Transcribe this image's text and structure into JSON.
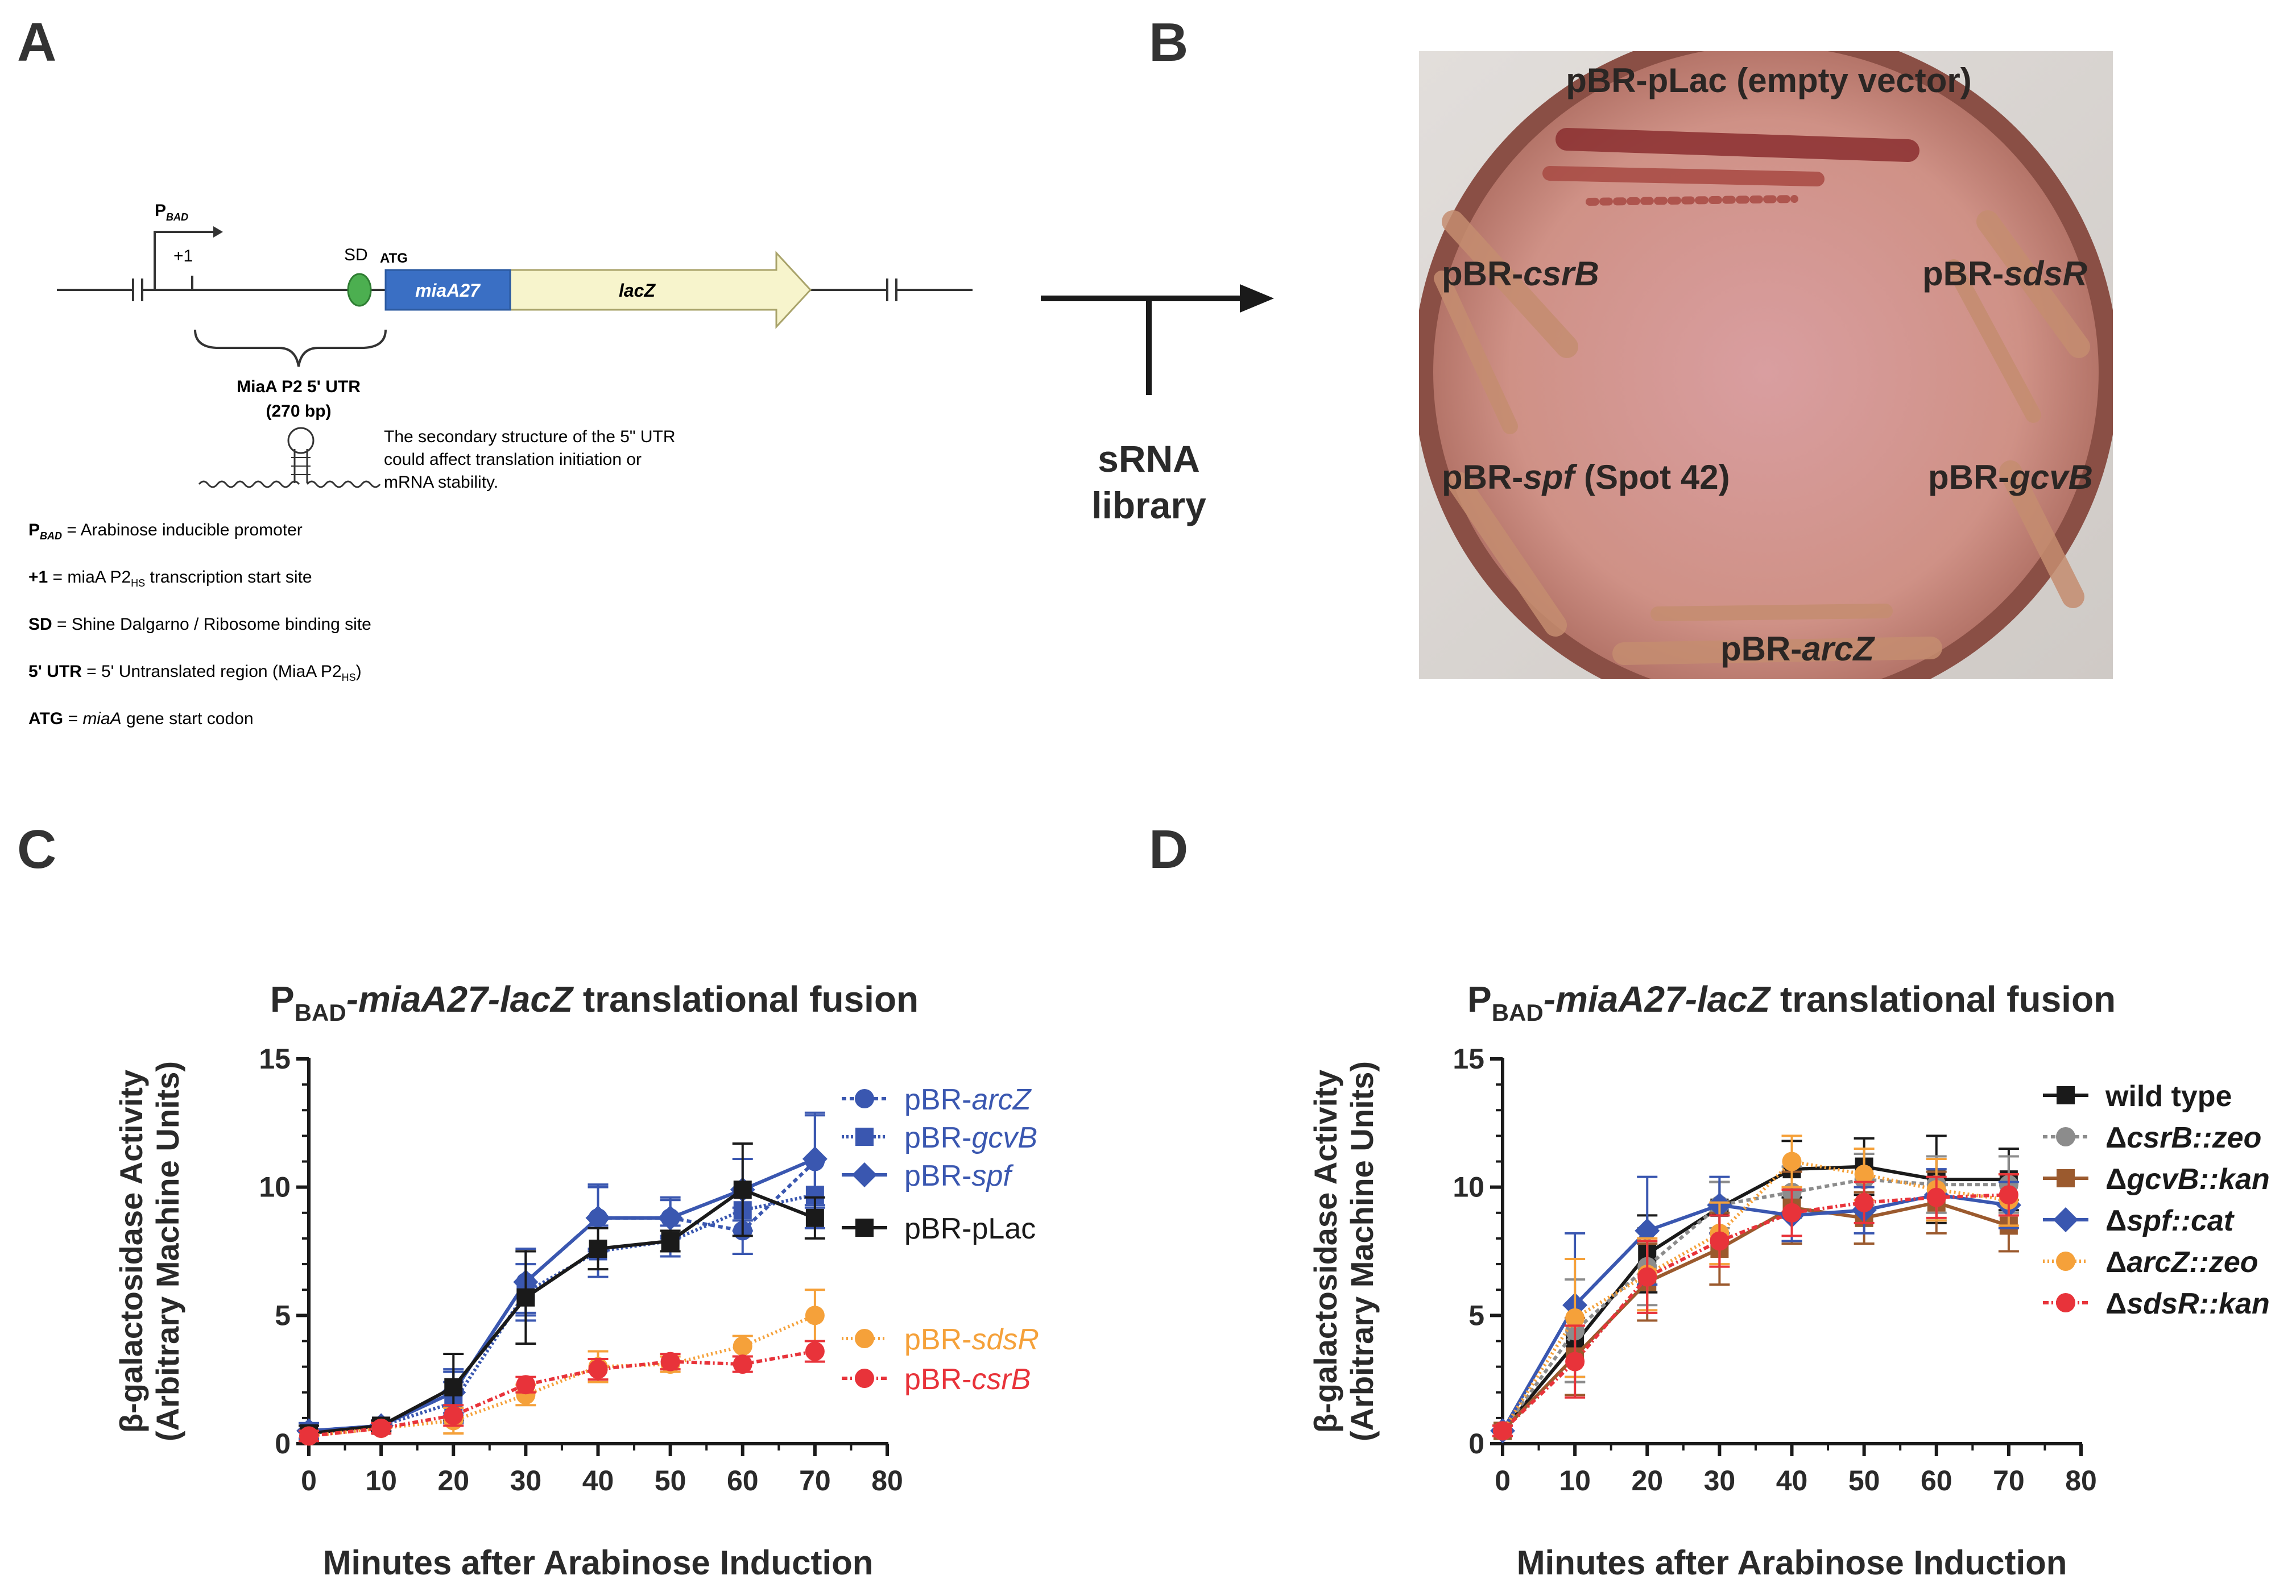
{
  "panels": {
    "a": "A",
    "b": "B",
    "c": "C",
    "d": "D"
  },
  "panel_a": {
    "promoter_label": "P",
    "promoter_sub": "BAD",
    "tss_label": "+1",
    "sd_label": "SD",
    "atg_label": "ATG",
    "miaA_label": "miaA27",
    "lacZ_label": "lacZ",
    "utr_label_line1": "MiaA P2 5' UTR",
    "utr_label_line2": "(270 bp)",
    "structure_note": [
      "The secondary structure of the 5\" UTR",
      "could affect translation initiation or",
      "mRNA stability."
    ],
    "legend": [
      {
        "term": "P",
        "sub": "BAD",
        "desc": " = Arabinose inducible promoter"
      },
      {
        "term": "+1",
        "sub": "",
        "desc": " = miaA P2",
        "desc_sub": "HS",
        "desc_tail": " transcription start site"
      },
      {
        "term": "SD",
        "sub": "",
        "desc": " = Shine Dalgarno / Ribosome binding site"
      },
      {
        "term": "5' UTR",
        "sub": "",
        "desc": " = 5' Untranslated region (MiaA P2",
        "desc_sub": "HS",
        "desc_tail": ")"
      },
      {
        "term": "ATG",
        "sub": "",
        "desc": " = ",
        "desc_italic": "miaA",
        "desc_tail": " gene start codon"
      }
    ],
    "colors": {
      "miaA": "#3a6fc4",
      "lacZ": "#f7f4cc",
      "sd": "#4caf50"
    }
  },
  "arrow_panel": {
    "line1": "sRNA",
    "line2": "library"
  },
  "panel_b": {
    "labels": {
      "top": "pBR-pLac (empty vector)",
      "csrB_prefix": "pBR-",
      "csrB": "csrB",
      "sdsR_prefix": "pBR-",
      "sdsR": "sdsR",
      "spf_prefix": "pBR-",
      "spf": "spf",
      "spf_suffix": " (Spot 42)",
      "gcvB_prefix": "pBR-",
      "gcvB": "gcvB",
      "arcZ_prefix": "pBR-",
      "arcZ": "arcZ"
    },
    "colors": {
      "agar": "#d9a49b",
      "rim": "#b87a70"
    }
  },
  "chart_data": [
    {
      "type": "line",
      "title_prefix": "P",
      "title_sub": "BAD",
      "title_italic": "-miaA27-lacZ",
      "title_suffix": " translational fusion",
      "xlabel": "Minutes after Arabinose Induction",
      "ylabel_line1": "β-galactosidase Activity",
      "ylabel_line2": "(Arbitrary Machine Units)",
      "x": [
        0,
        10,
        20,
        30,
        40,
        50,
        60,
        70
      ],
      "xlim": [
        0,
        80
      ],
      "xticks": [
        "0",
        "10",
        "20",
        "30",
        "40",
        "50",
        "60",
        "70",
        "80"
      ],
      "ylim": [
        0,
        15
      ],
      "yticks": [
        "0",
        "5",
        "10",
        "15"
      ],
      "series": [
        {
          "name_prefix": "pBR-",
          "name_italic": "arcZ",
          "color": "#3a57b0",
          "marker": "circle",
          "dash": "8,6",
          "values": [
            0.5,
            0.7,
            2.0,
            6.3,
            8.8,
            8.8,
            8.3,
            11.0
          ],
          "err": [
            0.3,
            0.2,
            0.9,
            1.2,
            1.2,
            0.7,
            0.9,
            1.8
          ]
        },
        {
          "name_prefix": "pBR-",
          "name_italic": "gcvB",
          "color": "#3a57b0",
          "marker": "square",
          "dash": "4,4",
          "values": [
            0.4,
            0.7,
            1.6,
            5.9,
            7.5,
            7.9,
            9.1,
            9.7
          ],
          "err": [
            0.3,
            0.2,
            0.8,
            1.1,
            1.0,
            0.6,
            0.8,
            1.3
          ]
        },
        {
          "name_prefix": "pBR-",
          "name_italic": "spf",
          "color": "#3a57b0",
          "marker": "diamond",
          "dash": "",
          "values": [
            0.5,
            0.7,
            2.0,
            6.3,
            8.8,
            8.8,
            9.9,
            11.1
          ],
          "err": [
            0.3,
            0.2,
            0.8,
            1.3,
            1.3,
            0.8,
            1.2,
            1.8
          ]
        },
        {
          "name_prefix": "pBR-pLac",
          "name_italic": "",
          "color": "#1a1a1a",
          "marker": "square",
          "dash": "",
          "values": [
            0.4,
            0.7,
            2.2,
            5.7,
            7.6,
            7.9,
            9.9,
            8.8
          ],
          "err": [
            0.3,
            0.2,
            1.3,
            1.8,
            0.8,
            0.4,
            1.8,
            0.8
          ]
        },
        {
          "name_prefix": "pBR-",
          "name_italic": "sdsR",
          "color": "#f5a13a",
          "marker": "circle",
          "dash": "3,5",
          "values": [
            0.3,
            0.6,
            0.9,
            1.9,
            3.0,
            3.1,
            3.8,
            5.0
          ],
          "err": [
            0.2,
            0.2,
            0.5,
            0.4,
            0.6,
            0.3,
            0.4,
            1.0
          ]
        },
        {
          "name_prefix": "pBR-",
          "name_italic": "csrB",
          "color": "#e8333a",
          "marker": "circle",
          "dash": "10,5,3,5",
          "values": [
            0.3,
            0.6,
            1.1,
            2.3,
            2.9,
            3.2,
            3.1,
            3.6
          ],
          "err": [
            0.2,
            0.2,
            0.4,
            0.3,
            0.4,
            0.3,
            0.3,
            0.4
          ]
        }
      ]
    },
    {
      "type": "line",
      "title_prefix": "P",
      "title_sub": "BAD",
      "title_italic": "-miaA27-lacZ",
      "title_suffix": " translational fusion",
      "xlabel": "Minutes after Arabinose Induction",
      "ylabel_line1": "β-galactosidase Activity",
      "ylabel_line2": "(Arbitrary Machine Units)",
      "x": [
        0,
        10,
        20,
        30,
        40,
        50,
        60,
        70
      ],
      "xlim": [
        0,
        80
      ],
      "xticks": [
        "0",
        "10",
        "20",
        "30",
        "40",
        "50",
        "60",
        "70",
        "80"
      ],
      "ylim": [
        0,
        15
      ],
      "yticks": [
        "0",
        "5",
        "10",
        "15"
      ],
      "series": [
        {
          "name_prefix": "wild type",
          "name_italic": "",
          "name_suffix": "",
          "color": "#1a1a1a",
          "marker": "square",
          "dash": "",
          "values": [
            0.5,
            3.9,
            7.4,
            9.2,
            10.7,
            10.8,
            10.3,
            10.3
          ],
          "err": [
            0.2,
            1.5,
            1.5,
            1.0,
            1.1,
            1.1,
            1.7,
            1.2
          ]
        },
        {
          "name_prefix": "Δ",
          "name_italic": "csrB",
          "name_suffix": "::zeo",
          "suffix_italic": true,
          "color": "#8c8c8c",
          "marker": "circle",
          "dash": "8,6",
          "values": [
            0.5,
            4.4,
            6.9,
            9.3,
            9.8,
            10.3,
            10.1,
            10.1
          ],
          "err": [
            0.2,
            2.0,
            1.5,
            0.9,
            1.0,
            1.0,
            1.1,
            1.1
          ]
        },
        {
          "name_prefix": "Δ",
          "name_italic": "gcvB",
          "name_suffix": "::kan",
          "suffix_italic": true,
          "color": "#9b5a2e",
          "marker": "square",
          "dash": "",
          "values": [
            0.5,
            3.4,
            6.3,
            7.6,
            9.2,
            8.8,
            9.4,
            8.5
          ],
          "err": [
            0.2,
            1.5,
            1.5,
            1.4,
            1.4,
            1.0,
            1.2,
            1.0
          ]
        },
        {
          "name_prefix": "Δ",
          "name_italic": "spf",
          "name_suffix": "::cat",
          "suffix_italic": true,
          "color": "#3a57b0",
          "marker": "diamond",
          "dash": "",
          "values": [
            0.5,
            5.4,
            8.3,
            9.3,
            8.9,
            9.1,
            9.7,
            9.3
          ],
          "err": [
            0.2,
            2.8,
            2.1,
            1.1,
            1.0,
            0.9,
            1.0,
            0.9
          ]
        },
        {
          "name_prefix": "Δ",
          "name_italic": "arcZ",
          "name_suffix": "::zeo",
          "suffix_italic": true,
          "color": "#f5a13a",
          "marker": "circle",
          "dash": "3,5",
          "values": [
            0.5,
            4.9,
            6.6,
            8.2,
            11.0,
            10.5,
            9.9,
            9.5
          ],
          "err": [
            0.2,
            2.3,
            1.4,
            1.2,
            1.0,
            1.0,
            1.2,
            1.0
          ]
        },
        {
          "name_prefix": "Δ",
          "name_italic": "sdsR",
          "name_suffix": "::kan",
          "suffix_italic": true,
          "color": "#e8333a",
          "marker": "circle",
          "dash": "10,5,3,5",
          "values": [
            0.5,
            3.2,
            6.5,
            7.9,
            9.0,
            9.4,
            9.6,
            9.7
          ],
          "err": [
            0.2,
            1.4,
            1.4,
            1.0,
            0.9,
            0.8,
            0.8,
            0.8
          ]
        }
      ]
    }
  ]
}
